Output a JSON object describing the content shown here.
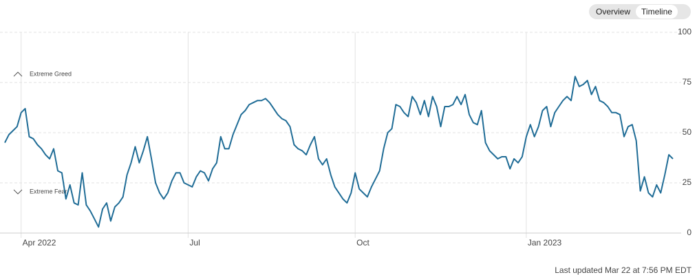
{
  "chart_data": {
    "type": "line",
    "tabs": [
      "Overview",
      "Timeline"
    ],
    "annotations": [
      "Extreme Greed",
      "Extreme Fear"
    ],
    "footnote": "Last updated Mar 22 at 7:56 PM EDT",
    "categories": [
      null,
      null,
      null,
      null,
      "Apr 2022",
      null,
      null,
      null,
      null,
      null,
      null,
      null,
      null,
      null,
      null,
      null,
      null,
      null,
      null,
      null,
      null,
      null,
      null,
      null,
      null,
      null,
      null,
      null,
      null,
      null,
      null,
      null,
      null,
      null,
      null,
      null,
      null,
      null,
      null,
      null,
      null,
      null,
      null,
      null,
      null,
      "Jul",
      null,
      null,
      null,
      null,
      null,
      null,
      null,
      null,
      null,
      null,
      null,
      null,
      null,
      null,
      null,
      null,
      null,
      null,
      null,
      null,
      null,
      null,
      null,
      null,
      null,
      null,
      null,
      null,
      null,
      null,
      null,
      null,
      null,
      null,
      null,
      null,
      null,
      null,
      null,
      null,
      "Oct",
      null,
      null,
      null,
      null,
      null,
      null,
      null,
      null,
      null,
      null,
      null,
      null,
      null,
      null,
      null,
      null,
      null,
      null,
      null,
      null,
      null,
      null,
      null,
      null,
      null,
      null,
      null,
      null,
      null,
      null,
      null,
      null,
      null,
      null,
      null,
      null,
      null,
      null,
      null,
      null,
      null,
      "Jan 2023",
      null,
      null,
      null,
      null,
      null,
      null,
      null,
      null,
      null,
      null,
      null,
      null,
      null,
      null,
      null,
      null,
      null,
      null,
      null,
      null,
      null,
      null,
      null,
      null,
      null,
      null,
      null,
      null,
      null,
      null,
      null,
      null,
      null,
      null,
      null,
      null
    ],
    "values": [
      45,
      49,
      51,
      53,
      60,
      62,
      48,
      47,
      44,
      42,
      39,
      37,
      42,
      31,
      30,
      17,
      24,
      15,
      14,
      30,
      14,
      11,
      7,
      3,
      12,
      15,
      6,
      13,
      15,
      18,
      29,
      35,
      43,
      35,
      41,
      48,
      37,
      25,
      20,
      17,
      20,
      26,
      30,
      30,
      25,
      24,
      23,
      28,
      31,
      30,
      26,
      32,
      35,
      48,
      42,
      42,
      49,
      54,
      59,
      61,
      64,
      65,
      66,
      66,
      67,
      65,
      62,
      59,
      57,
      56,
      53,
      44,
      42,
      41,
      39,
      44,
      48,
      37,
      34,
      37,
      29,
      23,
      20,
      17,
      15,
      20,
      30,
      22,
      20,
      18,
      23,
      27,
      31,
      42,
      50,
      52,
      64,
      63,
      60,
      58,
      68,
      65,
      59,
      66,
      58,
      68,
      63,
      53,
      63,
      63,
      64,
      68,
      64,
      69,
      59,
      55,
      54,
      61,
      45,
      41,
      39,
      37,
      38,
      38,
      32,
      37,
      35,
      38,
      48,
      54,
      48,
      53,
      61,
      63,
      53,
      60,
      63,
      66,
      68,
      66,
      78,
      73,
      74,
      76,
      69,
      73,
      66,
      65,
      63,
      60,
      60,
      59,
      48,
      53,
      54,
      46,
      21,
      28,
      20,
      18,
      24,
      20,
      29,
      39,
      37
    ],
    "color": "#1f6c96",
    "ylim": [
      0,
      100
    ],
    "yticks": [
      0,
      25,
      50,
      75,
      100
    ],
    "grid": true
  }
}
